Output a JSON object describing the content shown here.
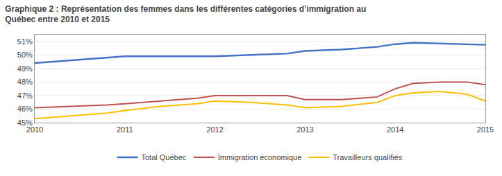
{
  "chart_data": {
    "type": "line",
    "title": "Graphique 2 : Représentation des femmes dans les différentes catégories d’immigration au\nQuébec entre 2010 et 2015",
    "x": [
      2010,
      2010.4,
      2010.8,
      2011,
      2011.4,
      2011.8,
      2012,
      2012.4,
      2012.8,
      2013,
      2013.4,
      2013.8,
      2014,
      2014.2,
      2014.5,
      2014.8,
      2015
    ],
    "series": [
      {
        "name": "Total Québec",
        "color": "#4472C4",
        "values": [
          0.494,
          0.496,
          0.498,
          0.499,
          0.499,
          0.499,
          0.499,
          0.5,
          0.501,
          0.503,
          0.504,
          0.506,
          0.508,
          0.509,
          0.5085,
          0.508,
          0.5075
        ]
      },
      {
        "name": "Immigration économique",
        "color": "#C0504D",
        "values": [
          0.461,
          0.462,
          0.463,
          0.464,
          0.466,
          0.468,
          0.47,
          0.47,
          0.47,
          0.467,
          0.467,
          0.469,
          0.475,
          0.479,
          0.48,
          0.48,
          0.478
        ]
      },
      {
        "name": "Travailleurs qualifiés",
        "color": "#FFBF00",
        "values": [
          0.453,
          0.455,
          0.457,
          0.459,
          0.462,
          0.464,
          0.466,
          0.465,
          0.463,
          0.461,
          0.462,
          0.465,
          0.47,
          0.472,
          0.473,
          0.471,
          0.466
        ]
      }
    ],
    "xlim": [
      2010,
      2015
    ],
    "xticks": [
      2010,
      2011,
      2012,
      2013,
      2014,
      2015
    ],
    "ylim": [
      0.45,
      0.515
    ],
    "yticks": [
      {
        "value": 0.45,
        "label": "45%"
      },
      {
        "value": 0.46,
        "label": "46%"
      },
      {
        "value": 0.47,
        "label": "47%"
      },
      {
        "value": 0.48,
        "label": "48%"
      },
      {
        "value": 0.49,
        "label": "49%"
      },
      {
        "value": 0.5,
        "label": "50%"
      },
      {
        "value": 0.51,
        "label": "51%"
      }
    ],
    "grid": true,
    "legend": "bottom"
  }
}
